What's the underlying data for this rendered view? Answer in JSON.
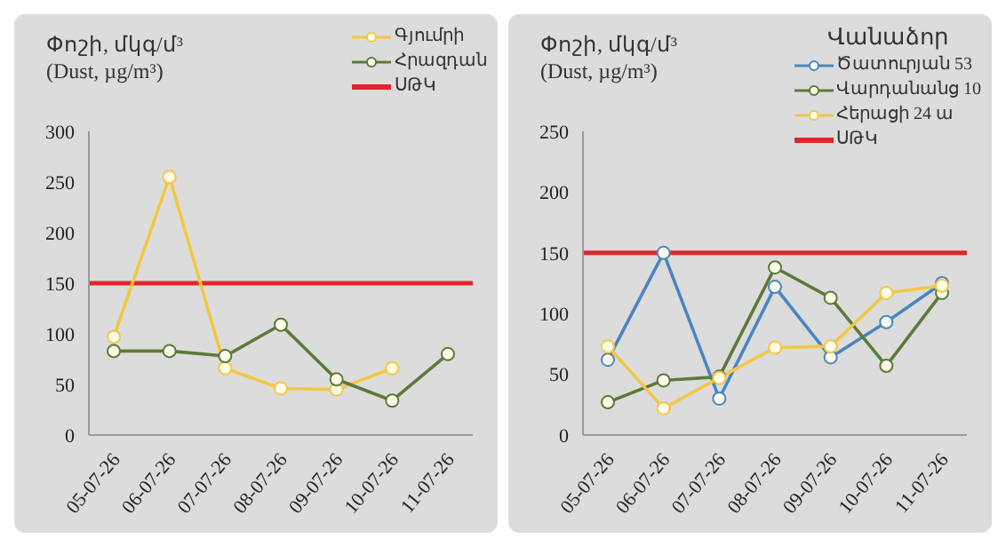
{
  "chart_data": [
    {
      "type": "line",
      "title": "Փոշի, մկգ/մ³",
      "subtitle": "(Dust, µg/m³)",
      "categories": [
        "05-07-26",
        "06-07-26",
        "07-07-26",
        "08-07-26",
        "09-07-26",
        "10-07-26",
        "11-07-26"
      ],
      "series": [
        {
          "name": "Գյումրի",
          "color": "#f2c744",
          "values": [
            97,
            255,
            66,
            46,
            45,
            66,
            null
          ]
        },
        {
          "name": "Հրազդան",
          "color": "#5a7a3a",
          "values": [
            83,
            83,
            78,
            109,
            55,
            34,
            80
          ]
        }
      ],
      "ylim": [
        0,
        300
      ],
      "yticks": [
        0,
        50,
        100,
        150,
        200,
        250,
        300
      ],
      "marker": "circle",
      "legend": "top right",
      "ref_lines": [
        {
          "axis": "y",
          "value": 150,
          "label": "ՍԹԿ",
          "color": "#e0262b"
        }
      ]
    },
    {
      "type": "line",
      "title": "Փոշի, մկգ/մ³",
      "subtitle": "(Dust, µg/m³)",
      "legend_title": "Վանաձոր",
      "categories": [
        "05-07-26",
        "06-07-26",
        "07-07-26",
        "08-07-26",
        "09-07-26",
        "10-07-26",
        "11-07-26"
      ],
      "series": [
        {
          "name": "Ծատուրյան 53",
          "color": "#4a86c0",
          "values": [
            62,
            150,
            30,
            122,
            64,
            93,
            125
          ]
        },
        {
          "name": "Վարդանանց 10",
          "color": "#5a7a3a",
          "values": [
            27,
            45,
            48,
            138,
            113,
            57,
            117
          ]
        },
        {
          "name": "Հերացի 24 ա",
          "color": "#f2c744",
          "values": [
            73,
            22,
            47,
            72,
            73,
            117,
            123
          ]
        }
      ],
      "ylim": [
        0,
        250
      ],
      "yticks": [
        0,
        50,
        100,
        150,
        200,
        250
      ],
      "marker": "circle",
      "legend": "top right",
      "ref_lines": [
        {
          "axis": "y",
          "value": 150,
          "label": "ՍԹԿ",
          "color": "#e0262b"
        }
      ]
    }
  ]
}
